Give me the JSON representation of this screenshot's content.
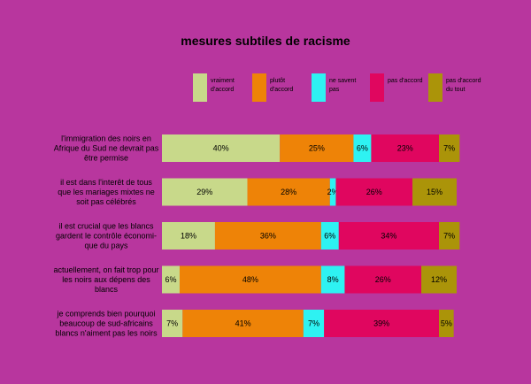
{
  "chart_data": {
    "type": "bar",
    "stacked": true,
    "orientation": "horizontal",
    "title": "mesures subtiles de racisme",
    "legend_position": "top",
    "grid": false,
    "xlim": [
      0,
      100
    ],
    "categories": [
      "l'immigration des noirs en Afrique du Sud ne devrait pas être permise",
      "il est dans l'interêt de tous que les mariages mixtes ne soit pas célébrés",
      "il est crucial que les blancs gardent le contrôle économi-que du pays",
      "actuellement, on fait trop pour les noirs aux dépens des blancs",
      "je comprends bien pourquoi beaucoup de sud-africains blancs n'aiment pas les noirs"
    ],
    "category_lines": [
      [
        "l'immigration des noirs en",
        "Afrique du Sud ne devrait pas",
        "être permise"
      ],
      [
        "il est dans l'interêt de tous",
        "que les mariages mixtes ne",
        "soit pas célébrés"
      ],
      [
        "il est crucial que les blancs",
        "gardent le contrôle économi-",
        "que du pays"
      ],
      [
        "actuellement, on fait trop pour",
        "les noirs aux dépens des",
        "blancs"
      ],
      [
        "je comprends bien pourquoi",
        "beaucoup de sud-africains",
        "blancs n'aiment pas les noirs"
      ]
    ],
    "series": [
      {
        "name": "vraiment d'accord",
        "legend_lines": [
          "vraiment",
          "d'accord"
        ],
        "color": "#c8d98a",
        "values": [
          40,
          29,
          18,
          6,
          7
        ]
      },
      {
        "name": "plutôt d'accord",
        "legend_lines": [
          "plutôt",
          "d'accord"
        ],
        "color": "#ee8307",
        "values": [
          25,
          28,
          36,
          48,
          41
        ]
      },
      {
        "name": "ne savent pas",
        "legend_lines": [
          "ne savent",
          "pas"
        ],
        "color": "#2ef2f2",
        "values": [
          6,
          2,
          6,
          8,
          7
        ]
      },
      {
        "name": "pas d'accord",
        "legend_lines": [
          "pas d'accord"
        ],
        "color": "#e0065f",
        "values": [
          23,
          26,
          34,
          26,
          39
        ]
      },
      {
        "name": "pas d'accord du tout",
        "legend_lines": [
          "pas d'accord",
          "du tout"
        ],
        "color": "#ab9409",
        "values": [
          7,
          15,
          7,
          12,
          5
        ]
      }
    ],
    "value_format": "{v}%"
  }
}
